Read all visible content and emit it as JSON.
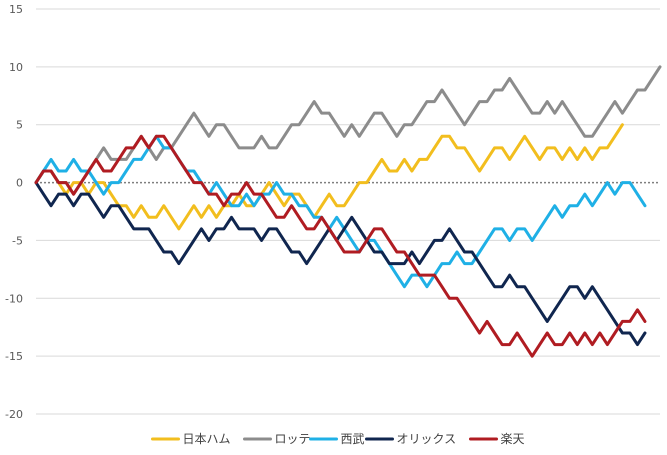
{
  "chart_data": {
    "type": "line",
    "title": "",
    "xlabel": "",
    "ylabel": "",
    "ylim": [
      -20,
      15
    ],
    "yticks": [
      15,
      10,
      5,
      0,
      -5,
      -10,
      -15,
      -20
    ],
    "grid": true,
    "zero_line": "dotted",
    "legend_position": "bottom",
    "series": [
      {
        "name": "日本ハム",
        "color": "#F2BE1E",
        "values": [
          0,
          1,
          1,
          0,
          -1,
          0,
          0,
          -1,
          0,
          0,
          -1,
          -2,
          -2,
          -3,
          -2,
          -3,
          -3,
          -2,
          -3,
          -4,
          -3,
          -2,
          -3,
          -2,
          -3,
          -2,
          -2,
          -1,
          -2,
          -2,
          -1,
          0,
          -1,
          -2,
          -1,
          -1,
          -2,
          -3,
          -2,
          -1,
          -2,
          -2,
          -1,
          0,
          0,
          1,
          2,
          1,
          1,
          2,
          1,
          2,
          2,
          3,
          4,
          4,
          3,
          3,
          2,
          1,
          2,
          3,
          3,
          2,
          3,
          4,
          3,
          2,
          3,
          3,
          2,
          3,
          2,
          3,
          2,
          3,
          3,
          4,
          5
        ]
      },
      {
        "name": "ロッテ",
        "color": "#8C8C8C",
        "values": [
          0,
          1,
          1,
          0,
          0,
          -1,
          0,
          1,
          2,
          3,
          2,
          2,
          2,
          3,
          4,
          3,
          2,
          3,
          3,
          4,
          5,
          6,
          5,
          4,
          5,
          5,
          4,
          3,
          3,
          3,
          4,
          3,
          3,
          4,
          5,
          5,
          6,
          7,
          6,
          6,
          5,
          4,
          5,
          4,
          5,
          6,
          6,
          5,
          4,
          5,
          5,
          6,
          7,
          7,
          8,
          7,
          6,
          5,
          6,
          7,
          7,
          8,
          8,
          9,
          8,
          7,
          6,
          6,
          7,
          6,
          7,
          6,
          5,
          4,
          4,
          5,
          6,
          7,
          6,
          7,
          8,
          8,
          9,
          10
        ]
      },
      {
        "name": "西武",
        "color": "#1FB0E6",
        "values": [
          0,
          1,
          2,
          1,
          1,
          2,
          1,
          1,
          0,
          -1,
          0,
          0,
          1,
          2,
          2,
          3,
          4,
          3,
          3,
          2,
          1,
          1,
          0,
          -1,
          0,
          -1,
          -2,
          -2,
          -1,
          -2,
          -1,
          -1,
          0,
          -1,
          -1,
          -2,
          -2,
          -3,
          -3,
          -4,
          -3,
          -4,
          -5,
          -6,
          -5,
          -5,
          -6,
          -7,
          -8,
          -9,
          -8,
          -8,
          -9,
          -8,
          -7,
          -7,
          -6,
          -7,
          -7,
          -6,
          -5,
          -4,
          -4,
          -5,
          -4,
          -4,
          -5,
          -4,
          -3,
          -2,
          -3,
          -2,
          -2,
          -1,
          -2,
          -1,
          0,
          -1,
          0,
          0,
          -1,
          -2
        ]
      },
      {
        "name": "オリックス",
        "color": "#10264F",
        "values": [
          0,
          -1,
          -2,
          -1,
          -1,
          -2,
          -1,
          -1,
          -2,
          -3,
          -2,
          -2,
          -3,
          -4,
          -4,
          -4,
          -5,
          -6,
          -6,
          -7,
          -6,
          -5,
          -4,
          -5,
          -4,
          -4,
          -3,
          -4,
          -4,
          -4,
          -5,
          -4,
          -4,
          -5,
          -6,
          -6,
          -7,
          -6,
          -5,
          -4,
          -5,
          -4,
          -3,
          -4,
          -5,
          -6,
          -6,
          -7,
          -7,
          -7,
          -6,
          -7,
          -6,
          -5,
          -5,
          -4,
          -5,
          -6,
          -6,
          -7,
          -8,
          -9,
          -9,
          -8,
          -9,
          -9,
          -10,
          -11,
          -12,
          -11,
          -10,
          -9,
          -9,
          -10,
          -9,
          -10,
          -11,
          -12,
          -13,
          -13,
          -14,
          -13
        ]
      },
      {
        "name": "楽天",
        "color": "#B01C22",
        "values": [
          0,
          1,
          1,
          0,
          0,
          -1,
          0,
          1,
          2,
          1,
          1,
          2,
          3,
          3,
          4,
          3,
          4,
          4,
          3,
          2,
          1,
          0,
          0,
          -1,
          -1,
          -2,
          -1,
          -1,
          0,
          -1,
          -1,
          -2,
          -3,
          -3,
          -2,
          -3,
          -4,
          -4,
          -3,
          -4,
          -5,
          -6,
          -6,
          -6,
          -5,
          -4,
          -4,
          -5,
          -6,
          -6,
          -7,
          -8,
          -8,
          -8,
          -9,
          -10,
          -10,
          -11,
          -12,
          -13,
          -12,
          -13,
          -14,
          -14,
          -13,
          -14,
          -15,
          -14,
          -13,
          -14,
          -14,
          -13,
          -14,
          -13,
          -14,
          -13,
          -14,
          -13,
          -12,
          -12,
          -11,
          -12
        ]
      }
    ]
  }
}
